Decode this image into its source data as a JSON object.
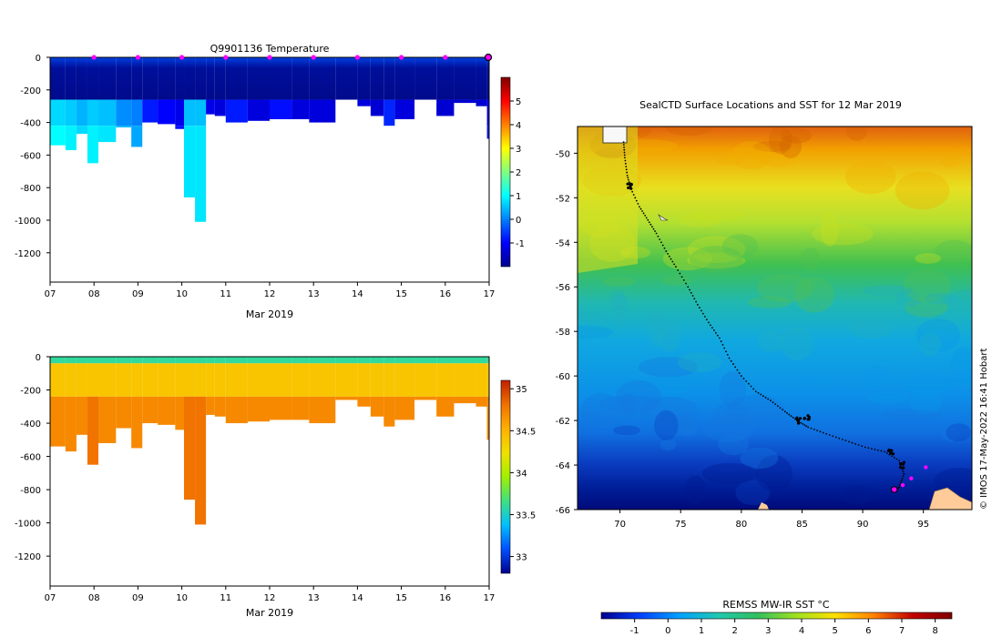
{
  "colors": {
    "temp_scale": [
      "#00008f",
      "#0000ff",
      "#0080ff",
      "#00ffff",
      "#80ff80",
      "#ffff00",
      "#ff8000",
      "#ff0000",
      "#800000"
    ],
    "salinity_scale": [
      "#00008f",
      "#0050ff",
      "#00c0ff",
      "#40e080",
      "#a0f000",
      "#f0e000",
      "#ffb000",
      "#f07000",
      "#c02000"
    ],
    "sst_scale": [
      "#00008f",
      "#0040ff",
      "#00a0ff",
      "#20c8b0",
      "#30c060",
      "#a0e020",
      "#ffe000",
      "#ff8000",
      "#c00000",
      "#800000"
    ],
    "profile_marker": "#ff00ff",
    "land": "#ffcc99"
  },
  "chart_data": [
    {
      "type": "heatmap",
      "id": "temperature",
      "title": "Q9901136  Temperature",
      "xlabel": "Mar 2019",
      "x_ticks": [
        "07",
        "08",
        "09",
        "10",
        "11",
        "12",
        "13",
        "14",
        "15",
        "16",
        "17"
      ],
      "y_ticks": [
        "0",
        "-200",
        "-400",
        "-600",
        "-800",
        "-1000",
        "-1200"
      ],
      "ylim": [
        -1380,
        0
      ],
      "xlim": [
        7,
        17
      ],
      "colorbar": {
        "min": -2,
        "max": 6,
        "ticks": [
          "5",
          "4",
          "3",
          "2",
          "1",
          "0",
          "-1"
        ]
      },
      "marker_days": [
        8,
        9,
        10,
        11,
        12,
        13,
        14,
        15,
        16
      ],
      "profiles": [
        {
          "day": 7.0,
          "max_depth": 540,
          "deep_temp": 1.0
        },
        {
          "day": 7.35,
          "max_depth": 570,
          "deep_temp": 0.9
        },
        {
          "day": 7.6,
          "max_depth": 470,
          "deep_temp": 0.7
        },
        {
          "day": 7.85,
          "max_depth": 650,
          "deep_temp": 0.9
        },
        {
          "day": 8.1,
          "max_depth": 520,
          "deep_temp": 0.8
        },
        {
          "day": 8.5,
          "max_depth": 430,
          "deep_temp": 0.4
        },
        {
          "day": 8.85,
          "max_depth": 550,
          "deep_temp": 0.3
        },
        {
          "day": 9.1,
          "max_depth": 400,
          "deep_temp": -0.5
        },
        {
          "day": 9.45,
          "max_depth": 410,
          "deep_temp": -0.7
        },
        {
          "day": 9.85,
          "max_depth": 440,
          "deep_temp": -0.9
        },
        {
          "day": 10.05,
          "max_depth": 860,
          "deep_temp": 0.8
        },
        {
          "day": 10.3,
          "max_depth": 1010,
          "deep_temp": 0.8
        },
        {
          "day": 10.55,
          "max_depth": 350,
          "deep_temp": -0.9
        },
        {
          "day": 10.75,
          "max_depth": 360,
          "deep_temp": -1.0
        },
        {
          "day": 11.0,
          "max_depth": 400,
          "deep_temp": -0.5
        },
        {
          "day": 11.5,
          "max_depth": 390,
          "deep_temp": -1.0
        },
        {
          "day": 12.0,
          "max_depth": 380,
          "deep_temp": -0.6
        },
        {
          "day": 12.5,
          "max_depth": 380,
          "deep_temp": -1.0
        },
        {
          "day": 12.9,
          "max_depth": 400,
          "deep_temp": -1.0
        },
        {
          "day": 13.5,
          "max_depth": 260,
          "deep_temp": -1.1
        },
        {
          "day": 14.0,
          "max_depth": 300,
          "deep_temp": -1.0
        },
        {
          "day": 14.3,
          "max_depth": 360,
          "deep_temp": -1.1
        },
        {
          "day": 14.6,
          "max_depth": 420,
          "deep_temp": -0.4
        },
        {
          "day": 14.85,
          "max_depth": 380,
          "deep_temp": -1.0
        },
        {
          "day": 15.3,
          "max_depth": 260,
          "deep_temp": -1.1
        },
        {
          "day": 15.8,
          "max_depth": 360,
          "deep_temp": -1.1
        },
        {
          "day": 16.2,
          "max_depth": 280,
          "deep_temp": -1.1
        },
        {
          "day": 16.7,
          "max_depth": 300,
          "deep_temp": -1.1
        },
        {
          "day": 16.95,
          "max_depth": 500,
          "deep_temp": -0.8
        }
      ]
    },
    {
      "type": "heatmap",
      "id": "salinity",
      "title": "",
      "xlabel": "Mar 2019",
      "x_ticks": [
        "07",
        "08",
        "09",
        "10",
        "11",
        "12",
        "13",
        "14",
        "15",
        "16",
        "17"
      ],
      "y_ticks": [
        "0",
        "-200",
        "-400",
        "-600",
        "-800",
        "-1000",
        "-1200"
      ],
      "ylim": [
        -1380,
        0
      ],
      "xlim": [
        7,
        17
      ],
      "colorbar": {
        "min": 32.8,
        "max": 35.1,
        "ticks": [
          "35",
          "34.5",
          "34",
          "33.5",
          "33"
        ]
      },
      "surface_salinity": 33.6,
      "mid_salinity": 34.4,
      "deep_salinity": 34.7
    },
    {
      "type": "heatmap",
      "id": "sst_map",
      "title": "SealCTD Surface Locations and SST for 12 Mar 2019",
      "xlabel": "",
      "x_ticks": [
        "70",
        "75",
        "80",
        "85",
        "90",
        "95"
      ],
      "y_ticks": [
        "-50",
        "-52",
        "-54",
        "-56",
        "-58",
        "-60",
        "-62",
        "-64",
        "-66"
      ],
      "xlim": [
        66.5,
        99
      ],
      "ylim": [
        -66,
        -48.8
      ],
      "colorbar": {
        "label": "REMSS MW-IR SST °C",
        "min": -2,
        "max": 8.5,
        "ticks": [
          "-1",
          "0",
          "1",
          "2",
          "3",
          "4",
          "5",
          "6",
          "7",
          "8"
        ]
      },
      "track": [
        [
          70.3,
          -49.5
        ],
        [
          70.4,
          -50.2
        ],
        [
          70.6,
          -51.0
        ],
        [
          70.9,
          -51.6
        ],
        [
          71.6,
          -52.4
        ],
        [
          72.3,
          -53.0
        ],
        [
          73.0,
          -53.6
        ],
        [
          73.8,
          -54.4
        ],
        [
          74.6,
          -55.1
        ],
        [
          75.6,
          -56.0
        ],
        [
          76.4,
          -56.8
        ],
        [
          77.3,
          -57.6
        ],
        [
          78.2,
          -58.3
        ],
        [
          79.0,
          -59.2
        ],
        [
          80.0,
          -60.0
        ],
        [
          81.2,
          -60.7
        ],
        [
          82.4,
          -61.1
        ],
        [
          83.6,
          -61.6
        ],
        [
          84.6,
          -62.0
        ],
        [
          85.5,
          -62.3
        ],
        [
          87.0,
          -62.6
        ],
        [
          88.6,
          -62.9
        ],
        [
          90.2,
          -63.2
        ],
        [
          91.8,
          -63.4
        ],
        [
          93.0,
          -63.8
        ],
        [
          93.4,
          -64.4
        ],
        [
          93.0,
          -65.0
        ],
        [
          92.5,
          -65.2
        ]
      ],
      "clusters": [
        [
          70.8,
          -51.5
        ],
        [
          84.8,
          -62.0
        ],
        [
          85.4,
          -61.9
        ],
        [
          92.3,
          -63.4
        ],
        [
          93.2,
          -64.0
        ]
      ],
      "magenta_points": [
        [
          92.6,
          -65.1
        ],
        [
          93.3,
          -64.9
        ],
        [
          94.0,
          -64.6
        ],
        [
          95.2,
          -64.1
        ]
      ]
    }
  ],
  "watermark": "© IMOS 17-May-2022 16:41 Hobart"
}
